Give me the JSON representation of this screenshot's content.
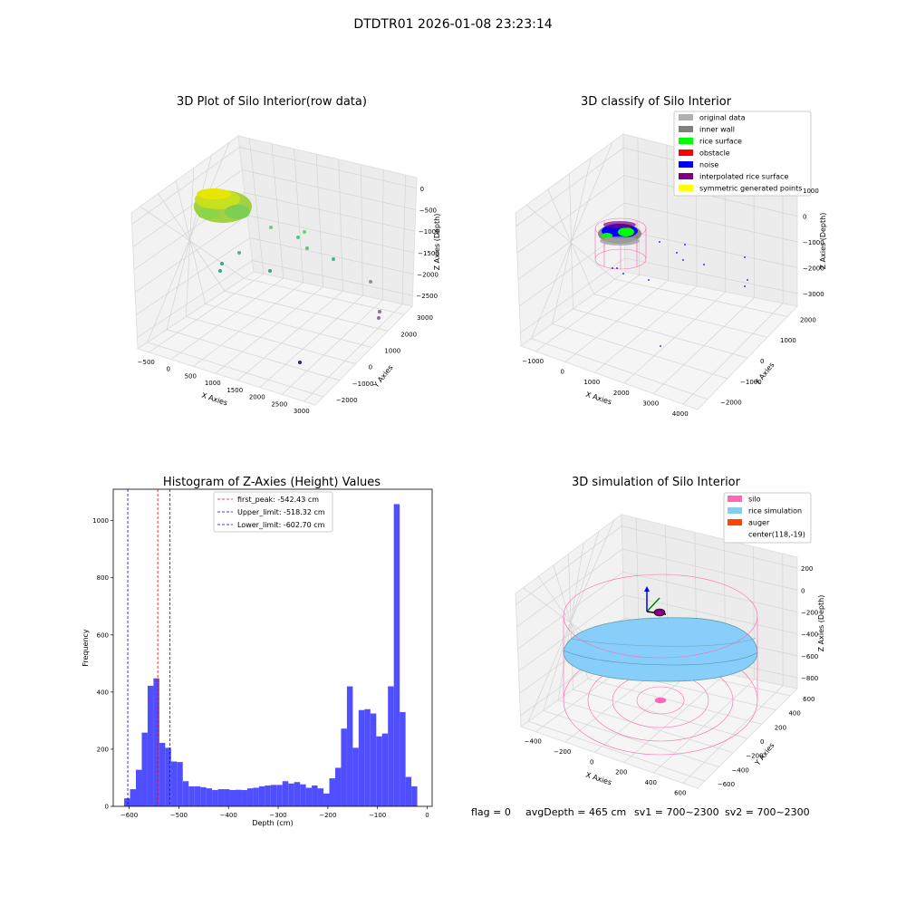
{
  "suptitle": "DTDTR01 2026-01-08 23:23:14",
  "footer": {
    "flag": "flag = 0",
    "avg_depth": "avgDepth = 465 cm",
    "sv1": "sv1 = 700~2300",
    "sv2": "sv2 = 700~2300"
  },
  "colors": {
    "hist_bar": "#4b4bff",
    "first_peak": "#ff0000",
    "limits": "#0000ff",
    "silo": "#ff69b4",
    "rice": "#87cefa",
    "auger": "#ff4500"
  },
  "chart_data": [
    {
      "type": "scatter",
      "projection": "3d",
      "title": "3D Plot of Silo Interior(row data)",
      "xlabel": "X Axies",
      "ylabel": "Y Axies",
      "zlabel": "Z Axies (Depth)",
      "xticks": [
        "−500",
        "0",
        "500",
        "1000",
        "1500",
        "2000",
        "2500",
        "3000"
      ],
      "yticks": [
        "−2000",
        "−1000",
        "0",
        "1000",
        "2000",
        "3000"
      ],
      "zticks": [
        "0",
        "−500",
        "−1000",
        "−1500",
        "−2000",
        "−2500"
      ],
      "colormap": "viridis",
      "grid": true
    },
    {
      "type": "scatter",
      "projection": "3d",
      "title": "3D classify of Silo Interior",
      "xlabel": "X Axies",
      "ylabel": "Y Axies",
      "zlabel": "Z Axies (Depth)",
      "xticks": [
        "−1000",
        "0",
        "1000",
        "2000",
        "3000",
        "4000"
      ],
      "yticks": [
        "−2000",
        "−1000",
        "0",
        "1000",
        "2000"
      ],
      "zticks": [
        "1000",
        "0",
        "−1000",
        "−2000",
        "−3000"
      ],
      "legend_position": "top-right",
      "legend": [
        {
          "label": "original data",
          "color": "#b0b0b0"
        },
        {
          "label": "inner wall",
          "color": "#808080"
        },
        {
          "label": "rice surface",
          "color": "#00ff00"
        },
        {
          "label": "obstacle",
          "color": "#ff0000"
        },
        {
          "label": "noise",
          "color": "#0000ff"
        },
        {
          "label": "interpolated rice surface",
          "color": "#800080"
        },
        {
          "label": "symmetric generated points",
          "color": "#ffff00"
        }
      ],
      "grid": true
    },
    {
      "type": "bar",
      "title": "Histogram of Z-Axies (Height) Values",
      "xlabel": "Depth (cm)",
      "ylabel": "Frequency",
      "xlim": [
        -632,
        10
      ],
      "ylim": [
        0,
        1110
      ],
      "xticks": [
        -600,
        -500,
        -400,
        -300,
        -200,
        -100,
        0
      ],
      "xtick_labels": [
        "−600",
        "−500",
        "−400",
        "−300",
        "−200",
        "−100",
        "0"
      ],
      "yticks": [
        0,
        200,
        400,
        600,
        800,
        1000
      ],
      "bins": {
        "start": -610,
        "width": 11.8,
        "counts": [
          28,
          60,
          128,
          258,
          422,
          448,
          222,
          205,
          157,
          155,
          88,
          70,
          70,
          67,
          63,
          57,
          60,
          60,
          57,
          58,
          57,
          63,
          65,
          70,
          73,
          75,
          75,
          88,
          80,
          85,
          77,
          65,
          73,
          63,
          45,
          98,
          135,
          272,
          420,
          205,
          337,
          340,
          325,
          245,
          255,
          420,
          1058,
          330,
          103,
          70
        ]
      },
      "vlines": [
        {
          "x": -542.43,
          "style": "dashed",
          "color": "#ff0000",
          "label": "first_peak: -542.43 cm"
        },
        {
          "x": -518.32,
          "style": "dashed",
          "color": "#0000ff",
          "label": "Upper_limit: -518.32 cm"
        },
        {
          "x": -602.7,
          "style": "dashed",
          "color": "#0000ff",
          "label": "Lower_limit: -602.70 cm"
        }
      ],
      "legend_position": "top-center"
    },
    {
      "type": "surface",
      "projection": "3d",
      "title": "3D simulation of Silo Interior",
      "xlabel": "X Axies",
      "ylabel": "Y Axies",
      "zlabel": "Z Axies (Depth)",
      "xticks": [
        "−400",
        "−200",
        "0",
        "200",
        "400",
        "600"
      ],
      "yticks": [
        "−600",
        "−400",
        "−200",
        "0",
        "200",
        "400",
        "600"
      ],
      "zticks": [
        "200",
        "0",
        "−200",
        "−400",
        "−600",
        "−800"
      ],
      "legend_position": "top-right",
      "legend": [
        {
          "label": "silo",
          "color": "#ff69b4"
        },
        {
          "label": "rice simulation",
          "color": "#87ceeb"
        },
        {
          "label": "auger",
          "color": "#ff4500"
        },
        {
          "label": "center(118,-19)",
          "color": ""
        }
      ],
      "grid": true
    }
  ]
}
